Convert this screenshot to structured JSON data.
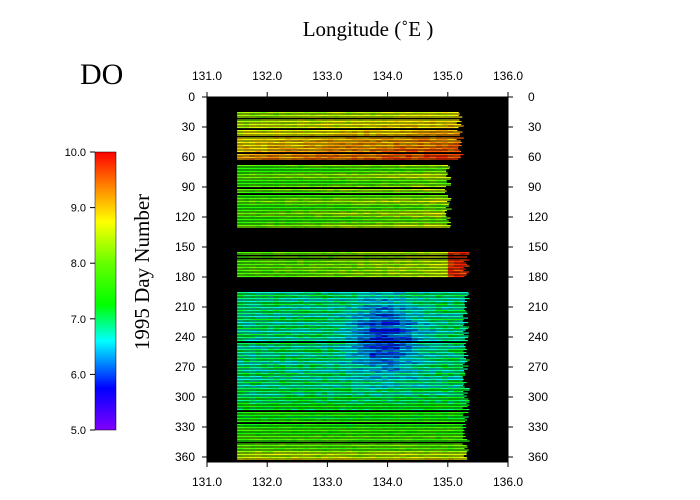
{
  "chart_data": {
    "type": "heatmap",
    "title": "DO",
    "xlabel": "Longitude  (˚E )",
    "ylabel": "1995  Day Number",
    "xlim": [
      131.0,
      136.0
    ],
    "ylim": [
      0,
      365
    ],
    "y_inverted": true,
    "x_ticks": [
      "131.0",
      "132.0",
      "133.0",
      "134.0",
      "135.0",
      "136.0"
    ],
    "y_ticks": [
      "0",
      "30",
      "60",
      "90",
      "120",
      "150",
      "180",
      "210",
      "240",
      "270",
      "300",
      "330",
      "360"
    ],
    "colorbar": {
      "range": [
        5.0,
        10.0
      ],
      "ticks": [
        "10.0",
        "9.0",
        "8.0",
        "7.0",
        "6.0",
        "5.0"
      ],
      "colormap": "rainbow (violet-blue-cyan-green-yellow-red)"
    },
    "background_color": "#000000",
    "data_periods": [
      {
        "day_start": 15,
        "day_end": 63,
        "lon_start": 131.5,
        "lon_end": 135.2,
        "do_range": [
          7.5,
          9.8
        ]
      },
      {
        "day_start": 68,
        "day_end": 130,
        "lon_start": 131.5,
        "lon_end": 135.0,
        "do_range": [
          7.5,
          9.3
        ]
      },
      {
        "day_start": 155,
        "day_end": 180,
        "lon_start": 131.5,
        "lon_end": 135.3,
        "do_range": [
          7.6,
          9.9
        ]
      },
      {
        "day_start": 195,
        "day_end": 362,
        "lon_start": 131.5,
        "lon_end": 135.3,
        "do_range": [
          5.8,
          9.5
        ]
      }
    ]
  }
}
